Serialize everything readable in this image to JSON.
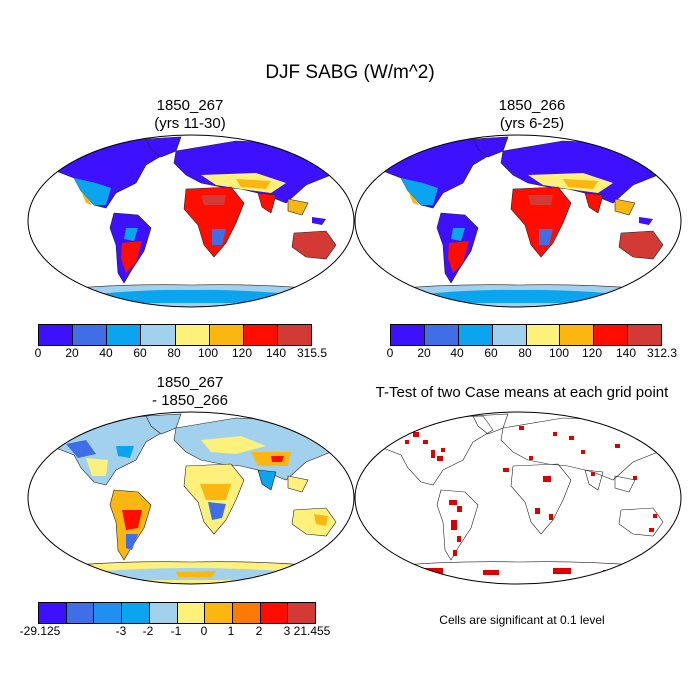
{
  "title": "DJF SABG (W/m^2)",
  "palette": {
    "main": [
      "#3d10ff",
      "#3f6ee6",
      "#0aa5ee",
      "#a2d1ee",
      "#fdf17c",
      "#fbb60f",
      "#ff0e00",
      "#d33a35"
    ],
    "diff": [
      "#3d10ff",
      "#3f6ee6",
      "#1f8ff0",
      "#0aa5ee",
      "#a2d1ee",
      "#fdf17c",
      "#fbb60f",
      "#fb7a04",
      "#ff0e00",
      "#d33a35"
    ],
    "signif": "#dd0000"
  },
  "panels": [
    {
      "title_line1": "1850_267",
      "title_line2": "(yrs 11-30)",
      "colorbar_labels": [
        "0",
        "20",
        "40",
        "60",
        "80",
        "100",
        "120",
        "140",
        "315.5"
      ]
    },
    {
      "title_line1": "1850_266",
      "title_line2": "(yrs 6-25)",
      "colorbar_labels": [
        "0",
        "20",
        "40",
        "60",
        "80",
        "100",
        "120",
        "140",
        "312.3"
      ]
    },
    {
      "title_line1": "1850_267",
      "title_line2": "- 1850_266",
      "colorbar_labels": [
        "-29.125",
        "-3",
        "-2",
        "-1",
        "0",
        "1",
        "2",
        "3",
        "21.455"
      ]
    },
    {
      "title_line1": "T-Test of two Case means at each grid point",
      "note": "Cells are significant at 0.1 level"
    }
  ]
}
